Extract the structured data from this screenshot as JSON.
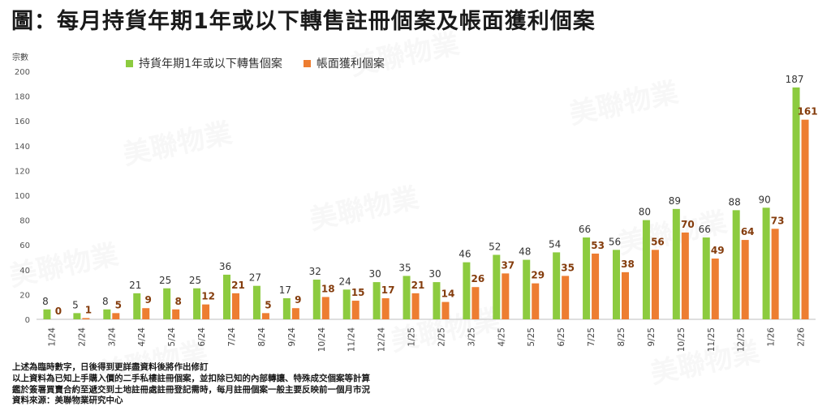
{
  "title": "圖：每月持貨年期1年或以下轉售註冊個案及帳面獲利個案",
  "unit_label": "宗數",
  "legend": [
    {
      "label": "持貨年期1年或以下轉售個案",
      "color": "#8CCB3F"
    },
    {
      "label": "帳面獲利個案",
      "color": "#ED7D31"
    }
  ],
  "notes": [
    "上述為臨時數字，日後得到更詳盡資料後將作出修訂",
    "以上資料為已知上手購入價的二手私樓註冊個案，並扣除已知的內部轉讓、特殊成交個案等計算",
    "鑑於簽署買賣合約至遞交到土地註冊處註冊登記需時，每月註冊個案一般主要反映前一個月市況",
    "資料來源：美聯物業研究中心"
  ],
  "watermark": {
    "text": "美聯物業",
    "subtext": "MIDLAND REALTY"
  },
  "chart_data": {
    "type": "bar",
    "categories": [
      "1/24",
      "2/24",
      "3/24",
      "4/24",
      "5/24",
      "6/24",
      "7/24",
      "8/24",
      "9/24",
      "10/24",
      "11/24",
      "12/24",
      "1/25",
      "2/25",
      "3/25",
      "4/25",
      "5/25",
      "6/25",
      "7/25",
      "8/25",
      "9/25",
      "10/25",
      "11/25",
      "12/25",
      "1/26",
      "2/26"
    ],
    "series": [
      {
        "name": "持貨年期1年或以下轉售個案",
        "color": "#8CCB3F",
        "label_color": "#333333",
        "values": [
          8,
          5,
          8,
          21,
          25,
          25,
          36,
          27,
          17,
          32,
          24,
          30,
          35,
          30,
          46,
          52,
          48,
          54,
          66,
          56,
          80,
          89,
          66,
          88,
          90,
          187
        ]
      },
      {
        "name": "帳面獲利個案",
        "color": "#ED7D31",
        "label_color": "#843C0C",
        "values": [
          0,
          1,
          5,
          9,
          8,
          12,
          21,
          5,
          9,
          18,
          15,
          17,
          21,
          14,
          26,
          37,
          29,
          35,
          53,
          38,
          56,
          70,
          49,
          64,
          73,
          161
        ]
      }
    ],
    "ylim": [
      0,
      200
    ],
    "yticks": [
      0,
      20,
      40,
      60,
      80,
      100,
      120,
      140,
      160,
      180,
      200
    ],
    "grid": false,
    "legend_position": "top-left"
  }
}
